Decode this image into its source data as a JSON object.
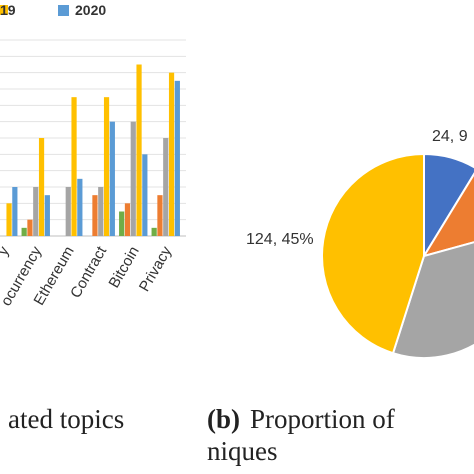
{
  "chart_data": [
    {
      "type": "bar",
      "legend": {
        "placement": "top",
        "entries": [
          {
            "label": "19",
            "color": "#ffc000"
          },
          {
            "label": "2020",
            "color": "#5b9bd5"
          }
        ]
      },
      "categories": [
        "y",
        "ocurrency",
        "Ethereum",
        "Contract",
        "Bitcoin",
        "Privacy"
      ],
      "series": [
        {
          "color": "#70ad47",
          "values": [
            1,
            1,
            0,
            0,
            3,
            1
          ]
        },
        {
          "color": "#ed7d31",
          "values": [
            0,
            2,
            0,
            5,
            4,
            5
          ]
        },
        {
          "color": "#a5a5a5",
          "values": [
            0,
            6,
            6,
            6,
            14,
            12
          ]
        },
        {
          "color": "#ffc000",
          "values": [
            4,
            12,
            17,
            17,
            21,
            20
          ]
        },
        {
          "color": "#5b9bd5",
          "values": [
            6,
            5,
            7,
            14,
            10,
            19
          ]
        }
      ],
      "ylim": [
        0,
        24
      ],
      "grid": true,
      "caption": "ated topics"
    },
    {
      "type": "pie",
      "slices": [
        {
          "label": "24, 9",
          "value": 24,
          "color": "#4472c4"
        },
        {
          "label": "",
          "value": 33,
          "color": "#ed7d31"
        },
        {
          "label": "",
          "value": 94,
          "color": "#a5a5a5"
        },
        {
          "label": "124, 45%",
          "value": 124,
          "color": "#ffc000"
        }
      ],
      "caption_prefix": "(b)",
      "caption_line1": "Proportion of",
      "caption_line2": "niques"
    }
  ]
}
